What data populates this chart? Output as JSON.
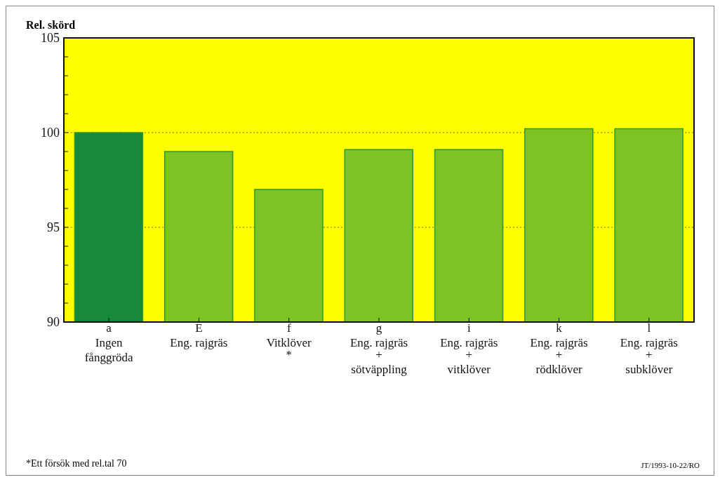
{
  "chart_data": {
    "type": "bar",
    "ylabel": "Rel. skörd",
    "categories": [
      "a\nIngen\nfånggröda",
      "E\nEng. rajgräs",
      "f\nVitklöver\n*",
      "g\nEng. rajgräs\n+\nsötväppling",
      "i\nEng. rajgräs\n+\nvitklöver",
      "k\nEng. rajgräs\n+\nrödklöver",
      "l\nEng. rajgräs\n+\nsubklöver"
    ],
    "values": [
      100,
      99,
      97,
      99.1,
      99.1,
      100.2,
      100.2
    ],
    "colors": [
      "#168a3a",
      "#7cc424",
      "#7cc424",
      "#7cc424",
      "#7cc424",
      "#7cc424",
      "#7cc424"
    ],
    "ylim": [
      90,
      105
    ],
    "yticks": [
      90,
      {
        "value": 91,
        "label": null
      },
      {
        "value": 92,
        "label": null
      },
      {
        "value": 93,
        "label": null
      },
      {
        "value": 94,
        "label": null
      },
      95,
      {
        "value": 96,
        "label": null
      },
      {
        "value": 97,
        "label": null
      },
      {
        "value": 98,
        "label": null
      },
      {
        "value": 99,
        "label": null
      },
      100,
      {
        "value": 101,
        "label": null
      },
      {
        "value": 102,
        "label": null
      },
      {
        "value": 103,
        "label": null
      },
      {
        "value": 104,
        "label": null
      },
      105
    ],
    "grid": "y",
    "annotations": [
      "*Ett försök med rel.tal 70",
      "JT/1993-10-22/RO"
    ]
  }
}
